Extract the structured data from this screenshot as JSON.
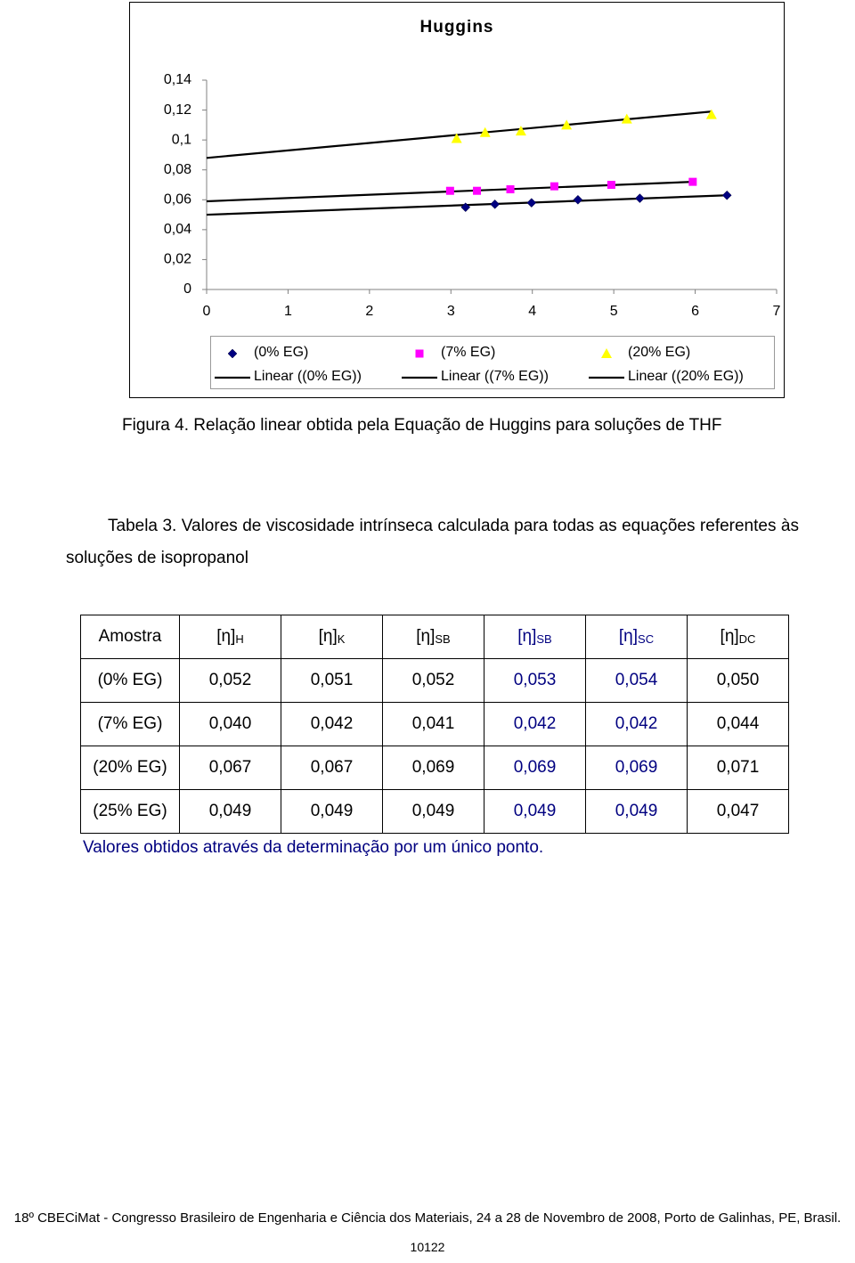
{
  "chart_data": {
    "type": "scatter",
    "title": "Huggins",
    "xlim": [
      0,
      7
    ],
    "xticks": [
      0,
      1,
      2,
      3,
      4,
      5,
      6,
      7
    ],
    "ylim": [
      0,
      0.14
    ],
    "yticks": [
      0,
      {
        "value": 0.02,
        "label": "0,02"
      },
      {
        "value": 0.04,
        "label": "0,04"
      },
      {
        "value": 0.06,
        "label": "0,06"
      },
      {
        "value": 0.08,
        "label": "0,08"
      },
      {
        "value": 0.1,
        "label": "0,1"
      },
      {
        "value": 0.12,
        "label": "0,12"
      },
      {
        "value": 0.14,
        "label": "0,14"
      }
    ],
    "series": [
      {
        "name": "(0% EG)",
        "color": "#000080",
        "marker": "diamond",
        "x": [
          3.18,
          3.54,
          3.99,
          4.56,
          5.32,
          6.39
        ],
        "values": [
          0.055,
          0.057,
          0.058,
          0.06,
          0.061,
          0.063
        ],
        "trend": {
          "name": "Linear ((0% EG))",
          "x": [
            0,
            6.39
          ],
          "values": [
            0.05,
            0.063
          ]
        }
      },
      {
        "name": "(7% EG)",
        "color": "#ff00ff",
        "marker": "square",
        "x": [
          2.99,
          3.32,
          3.73,
          4.27,
          4.97,
          5.97
        ],
        "values": [
          0.066,
          0.066,
          0.067,
          0.069,
          0.07,
          0.072
        ],
        "trend": {
          "name": "Linear ((7% EG))",
          "x": [
            0,
            5.97
          ],
          "values": [
            0.059,
            0.072
          ]
        }
      },
      {
        "name": "(20% EG)",
        "color": "#ffff00",
        "marker": "triangle",
        "x": [
          3.07,
          3.42,
          3.86,
          4.42,
          5.16,
          6.2
        ],
        "values": [
          0.101,
          0.105,
          0.106,
          0.11,
          0.114,
          0.117
        ],
        "trend": {
          "name": "Linear ((20% EG))",
          "x": [
            0,
            6.2
          ],
          "values": [
            0.088,
            0.119
          ]
        }
      }
    ]
  },
  "figure_caption": "Figura 4. Relação linear obtida pela Equação de Huggins para soluções de THF",
  "table_caption": "Tabela 3. Valores de viscosidade intrínseca calculada para todas as equações referentes às soluções de isopropanol",
  "table": {
    "header": [
      {
        "text": "Amostra"
      },
      {
        "text": "[η]",
        "sub": "H"
      },
      {
        "text": "[η]",
        "sub": "K"
      },
      {
        "text": "[η]",
        "sub": "SB"
      },
      {
        "text": "[η]",
        "sub": "SB"
      },
      {
        "text": "[η]",
        "sub": "SC"
      },
      {
        "text": "[η]",
        "sub": "DC"
      }
    ],
    "rows": [
      [
        "(0% EG)",
        "0,052",
        "0,051",
        "0,052",
        "0,053",
        "0,054",
        "0,050"
      ],
      [
        "(7% EG)",
        "0,040",
        "0,042",
        "0,041",
        "0,042",
        "0,042",
        "0,044"
      ],
      [
        "(20% EG)",
        "0,067",
        "0,067",
        "0,069",
        "0,069",
        "0,069",
        "0,071"
      ],
      [
        "(25% EG)",
        "0,049",
        "0,049",
        "0,049",
        "0,049",
        "0,049",
        "0,047"
      ]
    ],
    "blue_columns": [
      4,
      5
    ]
  },
  "table_note": "Valores obtidos através da determinação por um único ponto.",
  "footer": "18º CBECiMat - Congresso Brasileiro de Engenharia e Ciência dos Materiais, 24 a 28 de Novembro de 2008, Porto de Galinhas, PE, Brasil.",
  "page_number": "10122"
}
